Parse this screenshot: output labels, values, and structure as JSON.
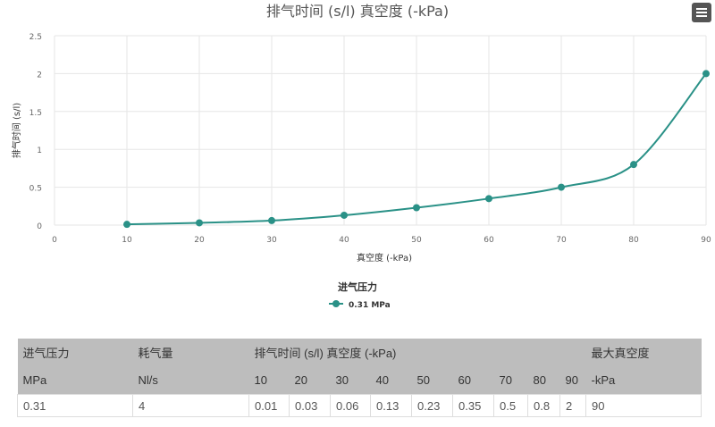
{
  "chart_data": {
    "type": "line",
    "title": "排气时间 (s/l) 真空度 (-kPa)",
    "xlabel": "真空度 (-kPa)",
    "ylabel": "排气时间 (s/l)",
    "xlim": [
      0,
      90
    ],
    "ylim": [
      0,
      2.5
    ],
    "xticks": [
      "0",
      "10",
      "20",
      "30",
      "40",
      "50",
      "60",
      "70",
      "80",
      "90"
    ],
    "yticks": [
      "0",
      "0.5",
      "1",
      "1.5",
      "2",
      "2.5"
    ],
    "grid": true,
    "legend_title": "进气压力",
    "legend_placement": "bottom",
    "series": [
      {
        "name": "0.31 MPa",
        "color": "#2a9187",
        "x": [
          10,
          20,
          30,
          40,
          50,
          60,
          70,
          80,
          90
        ],
        "y": [
          0.01,
          0.03,
          0.06,
          0.13,
          0.23,
          0.35,
          0.5,
          0.8,
          2
        ]
      }
    ]
  },
  "menu_icon": "hamburger-icon",
  "table": {
    "header1": [
      "进气压力",
      "耗气量",
      "排气时间 (s/l) 真空度 (-kPa)",
      "最大真空度"
    ],
    "header2": [
      "MPa",
      "Nl/s",
      "10",
      "20",
      "30",
      "40",
      "50",
      "60",
      "70",
      "80",
      "90",
      "-kPa"
    ],
    "row": [
      "0.31",
      "4",
      "0.01",
      "0.03",
      "0.06",
      "0.13",
      "0.23",
      "0.35",
      "0.5",
      "0.8",
      "2",
      "90"
    ]
  }
}
